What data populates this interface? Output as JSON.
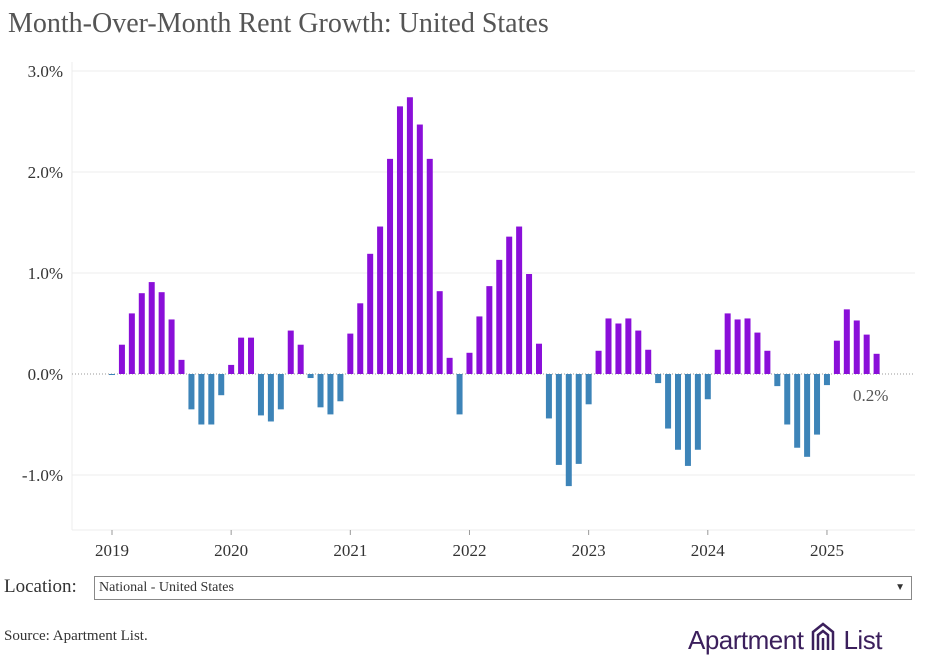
{
  "title": "Month-Over-Month Rent Growth: United States",
  "filter": {
    "label": "Location:",
    "selected": "National - United States"
  },
  "source": "Source: Apartment List.",
  "brand": {
    "word1": "Apartment",
    "word2": "List"
  },
  "colors": {
    "positive": "#8a0fd9",
    "negative": "#3d84b8",
    "grid": "#ececec",
    "zero_line": "#999999",
    "brand": "#3b1f5c"
  },
  "chart_data": {
    "type": "bar",
    "title": "Month-Over-Month Rent Growth: United States",
    "xlabel": "",
    "ylabel": "",
    "ylim": [
      -1.5,
      3.0
    ],
    "yticks": [
      "3.0%",
      "2.0%",
      "1.0%",
      "0.0%",
      "-1.0%"
    ],
    "ytick_values": [
      3.0,
      2.0,
      1.0,
      0.0,
      -1.0
    ],
    "xticks": [
      "2019",
      "2020",
      "2021",
      "2022",
      "2023",
      "2024",
      "2025"
    ],
    "grid": true,
    "start": "2019-01",
    "end": "2025-06",
    "values": [
      -0.01,
      0.29,
      0.6,
      0.8,
      0.91,
      0.81,
      0.54,
      0.14,
      -0.35,
      -0.5,
      -0.5,
      -0.21,
      0.09,
      0.36,
      0.36,
      -0.41,
      -0.47,
      -0.35,
      0.43,
      0.29,
      -0.04,
      -0.33,
      -0.4,
      -0.27,
      0.4,
      0.7,
      1.19,
      1.46,
      2.13,
      2.65,
      2.74,
      2.47,
      2.13,
      0.82,
      0.16,
      -0.4,
      0.21,
      0.57,
      0.87,
      1.13,
      1.36,
      1.46,
      0.99,
      0.3,
      -0.44,
      -0.9,
      -1.11,
      -0.89,
      -0.3,
      0.23,
      0.55,
      0.5,
      0.55,
      0.43,
      0.24,
      -0.09,
      -0.54,
      -0.75,
      -0.91,
      -0.75,
      -0.25,
      0.24,
      0.6,
      0.54,
      0.55,
      0.41,
      0.23,
      -0.12,
      -0.5,
      -0.73,
      -0.82,
      -0.6,
      -0.11,
      0.33,
      0.64,
      0.53,
      0.39,
      0.2
    ],
    "annotations": [
      {
        "text": "0.2%",
        "x": "2025-06",
        "y": 0.2
      }
    ]
  }
}
